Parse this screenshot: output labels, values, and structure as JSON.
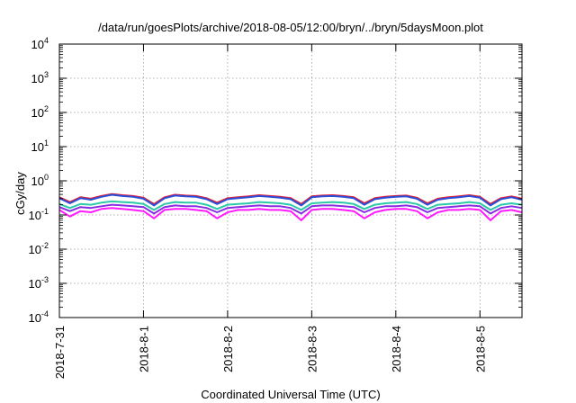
{
  "chart_data": {
    "type": "line",
    "title": "/data/run/goesPlots/archive/2018-08-05/12:00/bryn/../bryn/5daysMoon.plot",
    "xlabel": "Coordinated Universal Time (UTC)",
    "ylabel": "cGy/day",
    "yscale": "log",
    "ylim": [
      0.0001,
      10000
    ],
    "xlim": [
      "2018-07-31",
      "2018-08-05T12:00"
    ],
    "grid": true,
    "legend": "none",
    "x_tick_labels": [
      "2018-7-31",
      "2018-8-1",
      "2018-8-2",
      "2018-8-3",
      "2018-8-4",
      "2018-8-5"
    ],
    "y_ticks": [
      {
        "base": "10",
        "exp": "-4"
      },
      {
        "base": "10",
        "exp": "-3"
      },
      {
        "base": "10",
        "exp": "-2"
      },
      {
        "base": "10",
        "exp": "-1"
      },
      {
        "base": "10",
        "exp": "0"
      },
      {
        "base": "10",
        "exp": "1"
      },
      {
        "base": "10",
        "exp": "2"
      },
      {
        "base": "10",
        "exp": "3"
      },
      {
        "base": "10",
        "exp": "4"
      }
    ],
    "series": [
      {
        "color": "#e0203a",
        "x": [
          "2018-07-31T00:00",
          "2018-07-31T03:00",
          "2018-07-31T06:00",
          "2018-07-31T09:00",
          "2018-07-31T12:00",
          "2018-07-31T15:00",
          "2018-07-31T18:00",
          "2018-07-31T21:00",
          "2018-08-01T00:00",
          "2018-08-01T03:00",
          "2018-08-01T06:00",
          "2018-08-01T09:00",
          "2018-08-01T12:00",
          "2018-08-01T15:00",
          "2018-08-01T18:00",
          "2018-08-01T21:00",
          "2018-08-02T00:00",
          "2018-08-02T03:00",
          "2018-08-02T06:00",
          "2018-08-02T09:00",
          "2018-08-02T12:00",
          "2018-08-02T15:00",
          "2018-08-02T18:00",
          "2018-08-02T21:00",
          "2018-08-03T00:00",
          "2018-08-03T03:00",
          "2018-08-03T06:00",
          "2018-08-03T09:00",
          "2018-08-03T12:00",
          "2018-08-03T15:00",
          "2018-08-03T18:00",
          "2018-08-03T21:00",
          "2018-08-04T00:00",
          "2018-08-04T03:00",
          "2018-08-04T06:00",
          "2018-08-04T09:00",
          "2018-08-04T12:00",
          "2018-08-04T15:00",
          "2018-08-04T18:00",
          "2018-08-04T21:00",
          "2018-08-05T00:00",
          "2018-08-05T03:00",
          "2018-08-05T06:00",
          "2018-08-05T09:00",
          "2018-08-05T12:00"
        ],
        "values": [
          0.33,
          0.24,
          0.33,
          0.3,
          0.36,
          0.41,
          0.38,
          0.36,
          0.32,
          0.21,
          0.33,
          0.39,
          0.37,
          0.36,
          0.31,
          0.23,
          0.31,
          0.33,
          0.35,
          0.38,
          0.36,
          0.34,
          0.31,
          0.21,
          0.35,
          0.37,
          0.38,
          0.36,
          0.33,
          0.22,
          0.31,
          0.34,
          0.36,
          0.37,
          0.32,
          0.22,
          0.3,
          0.33,
          0.35,
          0.38,
          0.34,
          0.21,
          0.31,
          0.35,
          0.3
        ]
      },
      {
        "color": "#2a4ed8",
        "x": [
          "2018-07-31T00:00",
          "2018-07-31T03:00",
          "2018-07-31T06:00",
          "2018-07-31T09:00",
          "2018-07-31T12:00",
          "2018-07-31T15:00",
          "2018-07-31T18:00",
          "2018-07-31T21:00",
          "2018-08-01T00:00",
          "2018-08-01T03:00",
          "2018-08-01T06:00",
          "2018-08-01T09:00",
          "2018-08-01T12:00",
          "2018-08-01T15:00",
          "2018-08-01T18:00",
          "2018-08-01T21:00",
          "2018-08-02T00:00",
          "2018-08-02T03:00",
          "2018-08-02T06:00",
          "2018-08-02T09:00",
          "2018-08-02T12:00",
          "2018-08-02T15:00",
          "2018-08-02T18:00",
          "2018-08-02T21:00",
          "2018-08-03T00:00",
          "2018-08-03T03:00",
          "2018-08-03T06:00",
          "2018-08-03T09:00",
          "2018-08-03T12:00",
          "2018-08-03T15:00",
          "2018-08-03T18:00",
          "2018-08-03T21:00",
          "2018-08-04T00:00",
          "2018-08-04T03:00",
          "2018-08-04T06:00",
          "2018-08-04T09:00",
          "2018-08-04T12:00",
          "2018-08-04T15:00",
          "2018-08-04T18:00",
          "2018-08-04T21:00",
          "2018-08-05T00:00",
          "2018-08-05T03:00",
          "2018-08-05T06:00",
          "2018-08-05T09:00",
          "2018-08-05T12:00"
        ],
        "values": [
          0.31,
          0.22,
          0.31,
          0.28,
          0.34,
          0.39,
          0.36,
          0.34,
          0.3,
          0.19,
          0.31,
          0.37,
          0.35,
          0.34,
          0.29,
          0.21,
          0.29,
          0.31,
          0.33,
          0.36,
          0.34,
          0.32,
          0.29,
          0.19,
          0.33,
          0.35,
          0.36,
          0.34,
          0.31,
          0.2,
          0.29,
          0.32,
          0.34,
          0.35,
          0.3,
          0.2,
          0.28,
          0.31,
          0.33,
          0.36,
          0.32,
          0.19,
          0.29,
          0.33,
          0.28
        ]
      },
      {
        "color": "#2cc9a8",
        "x": [
          "2018-07-31T00:00",
          "2018-07-31T03:00",
          "2018-07-31T06:00",
          "2018-07-31T09:00",
          "2018-07-31T12:00",
          "2018-07-31T15:00",
          "2018-07-31T18:00",
          "2018-07-31T21:00",
          "2018-08-01T00:00",
          "2018-08-01T03:00",
          "2018-08-01T06:00",
          "2018-08-01T09:00",
          "2018-08-01T12:00",
          "2018-08-01T15:00",
          "2018-08-01T18:00",
          "2018-08-01T21:00",
          "2018-08-02T00:00",
          "2018-08-02T03:00",
          "2018-08-02T06:00",
          "2018-08-02T09:00",
          "2018-08-02T12:00",
          "2018-08-02T15:00",
          "2018-08-02T18:00",
          "2018-08-02T21:00",
          "2018-08-03T00:00",
          "2018-08-03T03:00",
          "2018-08-03T06:00",
          "2018-08-03T09:00",
          "2018-08-03T12:00",
          "2018-08-03T15:00",
          "2018-08-03T18:00",
          "2018-08-03T21:00",
          "2018-08-04T00:00",
          "2018-08-04T03:00",
          "2018-08-04T06:00",
          "2018-08-04T09:00",
          "2018-08-04T12:00",
          "2018-08-04T15:00",
          "2018-08-04T18:00",
          "2018-08-04T21:00",
          "2018-08-05T00:00",
          "2018-08-05T03:00",
          "2018-08-05T06:00",
          "2018-08-05T09:00",
          "2018-08-05T12:00"
        ],
        "values": [
          0.21,
          0.16,
          0.21,
          0.2,
          0.23,
          0.25,
          0.24,
          0.23,
          0.21,
          0.14,
          0.21,
          0.24,
          0.23,
          0.23,
          0.2,
          0.15,
          0.2,
          0.21,
          0.22,
          0.24,
          0.23,
          0.22,
          0.2,
          0.14,
          0.22,
          0.23,
          0.24,
          0.23,
          0.21,
          0.15,
          0.2,
          0.22,
          0.23,
          0.24,
          0.21,
          0.15,
          0.2,
          0.21,
          0.22,
          0.24,
          0.22,
          0.14,
          0.2,
          0.22,
          0.2
        ]
      },
      {
        "color": "#8a2be2",
        "x": [
          "2018-07-31T00:00",
          "2018-07-31T03:00",
          "2018-07-31T06:00",
          "2018-07-31T09:00",
          "2018-07-31T12:00",
          "2018-07-31T15:00",
          "2018-07-31T18:00",
          "2018-07-31T21:00",
          "2018-08-01T00:00",
          "2018-08-01T03:00",
          "2018-08-01T06:00",
          "2018-08-01T09:00",
          "2018-08-01T12:00",
          "2018-08-01T15:00",
          "2018-08-01T18:00",
          "2018-08-01T21:00",
          "2018-08-02T00:00",
          "2018-08-02T03:00",
          "2018-08-02T06:00",
          "2018-08-02T09:00",
          "2018-08-02T12:00",
          "2018-08-02T15:00",
          "2018-08-02T18:00",
          "2018-08-02T21:00",
          "2018-08-03T00:00",
          "2018-08-03T03:00",
          "2018-08-03T06:00",
          "2018-08-03T09:00",
          "2018-08-03T12:00",
          "2018-08-03T15:00",
          "2018-08-03T18:00",
          "2018-08-03T21:00",
          "2018-08-04T00:00",
          "2018-08-04T03:00",
          "2018-08-04T06:00",
          "2018-08-04T09:00",
          "2018-08-04T12:00",
          "2018-08-04T15:00",
          "2018-08-04T18:00",
          "2018-08-04T21:00",
          "2018-08-05T00:00",
          "2018-08-05T03:00",
          "2018-08-05T06:00",
          "2018-08-05T09:00",
          "2018-08-05T12:00"
        ],
        "values": [
          0.17,
          0.13,
          0.17,
          0.16,
          0.18,
          0.2,
          0.19,
          0.18,
          0.17,
          0.11,
          0.17,
          0.19,
          0.18,
          0.18,
          0.16,
          0.12,
          0.16,
          0.17,
          0.18,
          0.19,
          0.18,
          0.18,
          0.16,
          0.11,
          0.18,
          0.19,
          0.19,
          0.18,
          0.17,
          0.12,
          0.16,
          0.18,
          0.18,
          0.19,
          0.17,
          0.12,
          0.16,
          0.17,
          0.18,
          0.19,
          0.18,
          0.11,
          0.16,
          0.18,
          0.16
        ]
      },
      {
        "color": "#ff1aff",
        "x": [
          "2018-07-31T00:00",
          "2018-07-31T03:00",
          "2018-07-31T06:00",
          "2018-07-31T09:00",
          "2018-07-31T12:00",
          "2018-07-31T15:00",
          "2018-07-31T18:00",
          "2018-07-31T21:00",
          "2018-08-01T00:00",
          "2018-08-01T03:00",
          "2018-08-01T06:00",
          "2018-08-01T09:00",
          "2018-08-01T12:00",
          "2018-08-01T15:00",
          "2018-08-01T18:00",
          "2018-08-01T21:00",
          "2018-08-02T00:00",
          "2018-08-02T03:00",
          "2018-08-02T06:00",
          "2018-08-02T09:00",
          "2018-08-02T12:00",
          "2018-08-02T15:00",
          "2018-08-02T18:00",
          "2018-08-02T21:00",
          "2018-08-03T00:00",
          "2018-08-03T03:00",
          "2018-08-03T06:00",
          "2018-08-03T09:00",
          "2018-08-03T12:00",
          "2018-08-03T15:00",
          "2018-08-03T18:00",
          "2018-08-03T21:00",
          "2018-08-04T00:00",
          "2018-08-04T03:00",
          "2018-08-04T06:00",
          "2018-08-04T09:00",
          "2018-08-04T12:00",
          "2018-08-04T15:00",
          "2018-08-04T18:00",
          "2018-08-04T21:00",
          "2018-08-05T00:00",
          "2018-08-05T03:00",
          "2018-08-05T06:00",
          "2018-08-05T09:00",
          "2018-08-05T12:00"
        ],
        "values": [
          0.14,
          0.09,
          0.13,
          0.12,
          0.15,
          0.16,
          0.15,
          0.14,
          0.13,
          0.08,
          0.14,
          0.15,
          0.15,
          0.14,
          0.13,
          0.08,
          0.12,
          0.14,
          0.14,
          0.15,
          0.14,
          0.14,
          0.13,
          0.07,
          0.14,
          0.15,
          0.15,
          0.14,
          0.13,
          0.08,
          0.12,
          0.14,
          0.15,
          0.15,
          0.13,
          0.08,
          0.12,
          0.14,
          0.14,
          0.15,
          0.14,
          0.07,
          0.13,
          0.14,
          0.12
        ]
      }
    ]
  }
}
